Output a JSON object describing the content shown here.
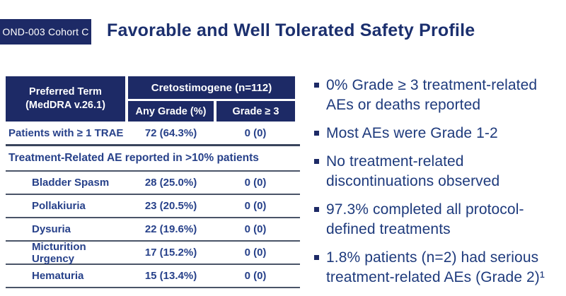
{
  "slide": {
    "badge": "OND-003 Cohort C",
    "title": "Favorable and Well Tolerated Safety Profile"
  },
  "table": {
    "header": {
      "preferred_term_line1": "Preferred Term",
      "preferred_term_line2": "(MedDRA v.26.1)",
      "group": "Cretostimogene (n=112)",
      "col_any_grade": "Any Grade (%)",
      "col_grade3": "Grade ≥ 3"
    },
    "summary_row": {
      "label": "Patients with ≥ 1 TRAE",
      "any_grade": "72 (64.3%)",
      "grade3": "0 (0)"
    },
    "section_header": "Treatment-Related AE reported in >10% patients",
    "rows": [
      {
        "label": "Bladder Spasm",
        "any_grade": "28 (25.0%)",
        "grade3": "0 (0)"
      },
      {
        "label": "Pollakiuria",
        "any_grade": "23 (20.5%)",
        "grade3": "0 (0)"
      },
      {
        "label": "Dysuria",
        "any_grade": "22 (19.6%)",
        "grade3": "0 (0)"
      },
      {
        "label": "Micturition Urgency",
        "any_grade": "17 (15.2%)",
        "grade3": "0 (0)"
      },
      {
        "label": "Hematuria",
        "any_grade": "15 (13.4%)",
        "grade3": "0 (0)"
      }
    ]
  },
  "bullets": [
    {
      "text": "0% Grade ≥ 3 treatment-related AEs or deaths reported"
    },
    {
      "text": "Most AEs were Grade 1-2"
    },
    {
      "text": "No treatment-related discontinuations observed"
    },
    {
      "text": "97.3% completed all protocol-defined treatments"
    },
    {
      "text": "1.8% patients (n=2) had serious treatment-related AEs (Grade 2)¹"
    }
  ],
  "colors": {
    "navy_fill": "#1D2A66",
    "title_text": "#1B2F6E",
    "table_text": "#27418A",
    "bullet_text": "#1E3A7C",
    "separator": "#4A5468",
    "background": "#FFFFFF"
  }
}
